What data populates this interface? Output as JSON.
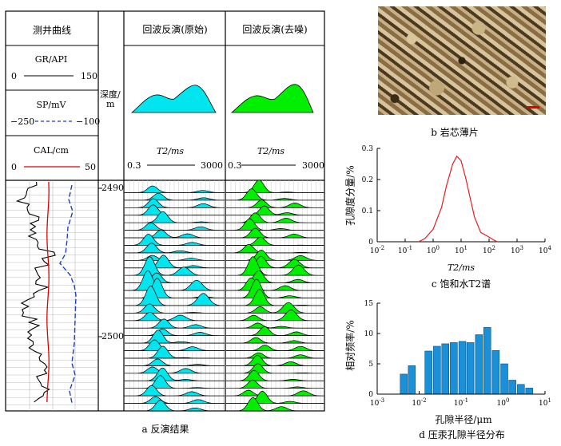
{
  "panel_a": {
    "col_log_header": "测井曲线",
    "gr": {
      "label": "GR/API",
      "min": "0",
      "max": "150"
    },
    "sp": {
      "label": "SP/mV",
      "min": "−250",
      "max": "−100"
    },
    "cal": {
      "label": "CAL/cm",
      "min": "0",
      "max": "50"
    },
    "depth_header_line1": "深度/",
    "depth_header_line2": "m",
    "depth_2490": "2490",
    "depth_2500": "2500",
    "inv_orig_header": "回波反演(原始)",
    "inv_denoise_header": "回波反演(去噪)",
    "t2_label_orig": "T2/ms",
    "t2_min_orig": "0.3",
    "t2_max_orig": "3000",
    "t2_label_denoise": "T2/ms",
    "t2_min_denoise": "0.3",
    "t2_max_denoise": "3000",
    "caption": "a  反演结果",
    "colors": {
      "gr": "#000000",
      "sp": "#1f3fbf",
      "cal": "#e00000",
      "orig_fill": "#00e5ee",
      "denoise_fill": "#00ee00"
    }
  },
  "panel_b": {
    "caption": "b  岩芯薄片"
  },
  "panel_c": {
    "caption": "c  饱和水T2谱",
    "ylabel": "孔隙度分量/%",
    "xlabel": "T2/ms",
    "yticks": [
      "0.3",
      "0.2",
      "0.1",
      "0"
    ],
    "xticks": [
      "10-2",
      "10-1",
      "100",
      "101",
      "102",
      "103",
      "104"
    ]
  },
  "panel_d": {
    "caption": "d  压汞孔隙半径分布",
    "ylabel": "相对频率/%",
    "xlabel": "孔隙半径/μm",
    "yticks": [
      "15",
      "10",
      "5",
      "0"
    ],
    "xticks": [
      "10-3",
      "10-2",
      "10-1",
      "100",
      "101"
    ]
  },
  "chart_data": [
    {
      "type": "line",
      "title": "饱和水T2谱",
      "xlabel": "T2/ms",
      "ylabel": "孔隙度分量/%",
      "xscale": "log",
      "xlim": [
        0.01,
        10000
      ],
      "ylim": [
        0,
        0.3
      ],
      "x": [
        0.3,
        0.5,
        1,
        2,
        3,
        5,
        7,
        10,
        15,
        20,
        30,
        50,
        100,
        150,
        200
      ],
      "series": [
        {
          "name": "饱和水T2谱",
          "color": "#e02020",
          "values": [
            0.0,
            0.01,
            0.04,
            0.11,
            0.18,
            0.25,
            0.275,
            0.26,
            0.2,
            0.15,
            0.08,
            0.03,
            0.015,
            0.005,
            0.0
          ]
        }
      ]
    },
    {
      "type": "bar",
      "title": "压汞孔隙半径分布",
      "xlabel": "孔隙半径/μm",
      "ylabel": "相对频率/%",
      "xscale": "log",
      "xlim": [
        0.001,
        10
      ],
      "ylim": [
        0,
        15
      ],
      "categories": [
        "0.0043",
        "0.0067",
        "0.0107",
        "0.0167",
        "0.0267",
        "0.042",
        "0.067",
        "0.107",
        "0.167",
        "0.267",
        "0.42",
        "0.67",
        "1.07",
        "1.67",
        "2.67",
        "4.2"
      ],
      "values": [
        3.3,
        4.7,
        0,
        7.1,
        7.9,
        8.3,
        8.5,
        8.7,
        8.5,
        9.8,
        11.0,
        7.2,
        5.0,
        2.3,
        1.6,
        1.0
      ],
      "color": "#1a90d8"
    }
  ]
}
